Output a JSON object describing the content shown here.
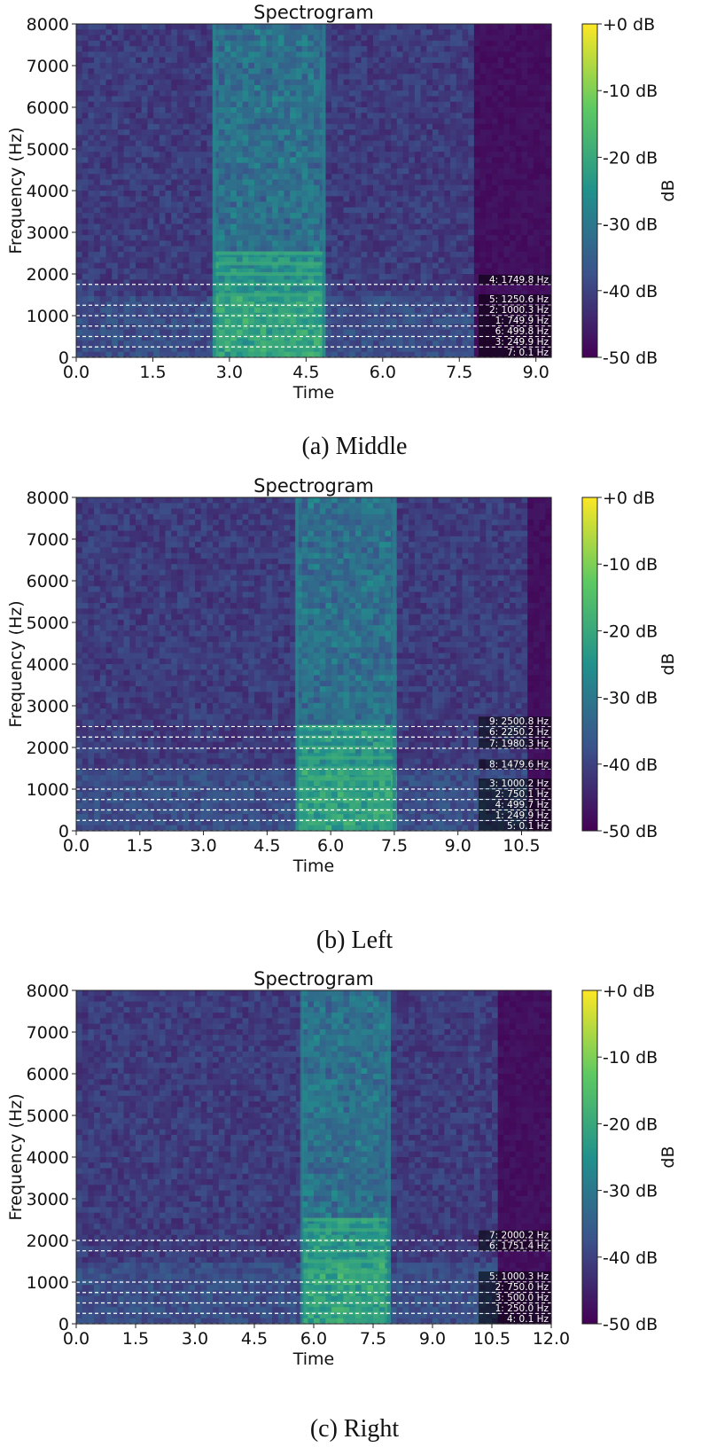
{
  "figure": {
    "colorbar": {
      "label": "dB",
      "ticks": [
        "+0 dB",
        "-10 dB",
        "-20 dB",
        "-30 dB",
        "-40 dB",
        "-50 dB"
      ],
      "colormap": [
        "#440154",
        "#3b528b",
        "#21918c",
        "#5ec962",
        "#fde725"
      ]
    }
  },
  "chart_data": [
    {
      "type": "heatmap",
      "title": "Spectrogram",
      "caption": "(a)  Middle",
      "xlabel": "Time",
      "ylabel": "Frequency (Hz)",
      "xlim": [
        0,
        9.3
      ],
      "ylim": [
        0,
        8000
      ],
      "xticks": [
        "0.0",
        "1.5",
        "3.0",
        "4.5",
        "6.0",
        "7.5",
        "9.0"
      ],
      "yticks": [
        "0",
        "1000",
        "2000",
        "3000",
        "4000",
        "5000",
        "6000",
        "7000",
        "8000"
      ],
      "silence_start": 7.8,
      "speech_band": [
        2.7,
        4.85
      ],
      "markers": [
        {
          "label": "4: 1749.8 Hz",
          "freq": 1749.8
        },
        {
          "label": "5: 1250.6 Hz",
          "freq": 1250.6
        },
        {
          "label": "2: 1000.3 Hz",
          "freq": 1000.3
        },
        {
          "label": "1: 749.9 Hz",
          "freq": 749.9
        },
        {
          "label": "6: 499.8 Hz",
          "freq": 499.8
        },
        {
          "label": "3: 249.9 Hz",
          "freq": 249.9
        },
        {
          "label": "7: 0.1 Hz",
          "freq": 0.1
        }
      ]
    },
    {
      "type": "heatmap",
      "title": "Spectrogram",
      "caption": "(b)  Left",
      "xlabel": "Time",
      "ylabel": "Frequency (Hz)",
      "xlim": [
        0,
        11.2
      ],
      "ylim": [
        0,
        8000
      ],
      "xticks": [
        "0.0",
        "1.5",
        "3.0",
        "4.5",
        "6.0",
        "7.5",
        "9.0",
        "10.5"
      ],
      "yticks": [
        "0",
        "1000",
        "2000",
        "3000",
        "4000",
        "5000",
        "6000",
        "7000",
        "8000"
      ],
      "silence_start": 10.6,
      "speech_band": [
        5.2,
        7.5
      ],
      "markers": [
        {
          "label": "9: 2500.8 Hz",
          "freq": 2500.8
        },
        {
          "label": "6: 2250.2 Hz",
          "freq": 2250.2
        },
        {
          "label": "7: 1980.3 Hz",
          "freq": 1980.3
        },
        {
          "label": "8: 1479.6 Hz",
          "freq": 1479.6
        },
        {
          "label": "3: 1000.2 Hz",
          "freq": 1000.2
        },
        {
          "label": "2: 750.1 Hz",
          "freq": 750.1
        },
        {
          "label": "4: 499.7 Hz",
          "freq": 499.7
        },
        {
          "label": "1: 249.9 Hz",
          "freq": 249.9
        },
        {
          "label": "5: 0.1 Hz",
          "freq": 0.1
        }
      ]
    },
    {
      "type": "heatmap",
      "title": "Spectrogram",
      "caption": "(c)  Right",
      "xlabel": "Time",
      "ylabel": "Frequency (Hz)",
      "xlim": [
        0,
        12.0
      ],
      "ylim": [
        0,
        8000
      ],
      "xticks": [
        "0.0",
        "1.5",
        "3.0",
        "4.5",
        "6.0",
        "7.5",
        "9.0",
        "10.5",
        "12.0"
      ],
      "yticks": [
        "0",
        "1000",
        "2000",
        "3000",
        "4000",
        "5000",
        "6000",
        "7000",
        "8000"
      ],
      "silence_start": 10.7,
      "speech_band": [
        5.7,
        7.9
      ],
      "markers": [
        {
          "label": "7: 2000.2 Hz",
          "freq": 2000.2
        },
        {
          "label": "6: 1751.4 Hz",
          "freq": 1751.4
        },
        {
          "label": "5: 1000.3 Hz",
          "freq": 1000.3
        },
        {
          "label": "2: 750.0 Hz",
          "freq": 750.0
        },
        {
          "label": "3: 500.0 Hz",
          "freq": 500.0
        },
        {
          "label": "1: 250.0 Hz",
          "freq": 250.0
        },
        {
          "label": "4: 0.1 Hz",
          "freq": 0.1
        }
      ]
    }
  ]
}
